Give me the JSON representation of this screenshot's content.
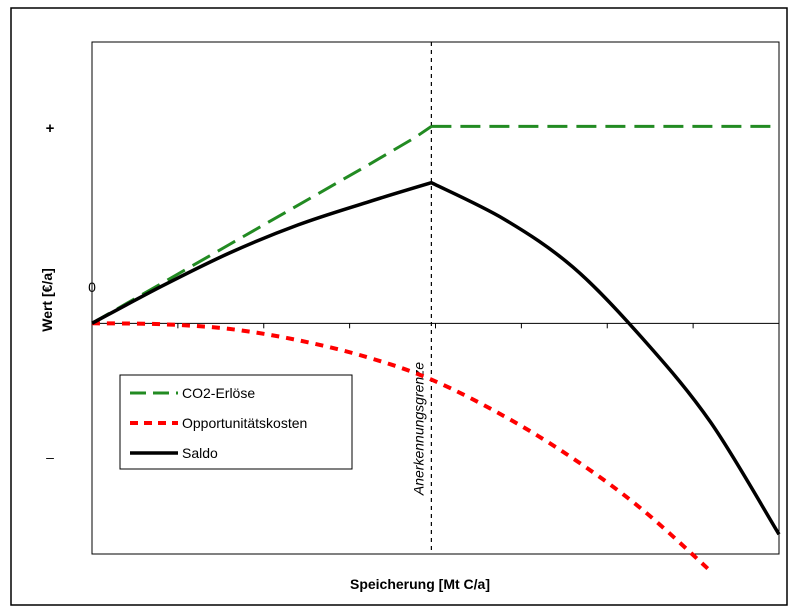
{
  "chart_data": {
    "type": "line",
    "title": "",
    "xlabel": "Speicherung [Mt C/a]",
    "ylabel": "Wert [€/a]",
    "y_plus_label": "+",
    "y_minus_label": "–",
    "x_tick_labels": [
      "0"
    ],
    "xlim": [
      0,
      1
    ],
    "ylim": [
      -0.82,
      1.0
    ],
    "grid": false,
    "legend_position": "bottom-left",
    "vline": {
      "x": 0.494,
      "label": "Anerkennungsgrenze"
    },
    "series": [
      {
        "name": "CO2-Erlöse",
        "style": "long-dash",
        "color": "#228b22",
        "x": [
          0.0,
          0.1,
          0.2,
          0.3,
          0.4,
          0.47,
          0.494,
          0.6,
          0.8,
          1.0
        ],
        "y": [
          0.0,
          0.14,
          0.28,
          0.42,
          0.56,
          0.66,
          0.7,
          0.7,
          0.7,
          0.7
        ]
      },
      {
        "name": "Opportunitätskosten",
        "style": "short-dash",
        "color": "#ff0000",
        "x": [
          0.0,
          0.1,
          0.2,
          0.3,
          0.4,
          0.494,
          0.6,
          0.7,
          0.8,
          0.9
        ],
        "y": [
          0.0,
          -0.003,
          -0.02,
          -0.06,
          -0.12,
          -0.2,
          -0.33,
          -0.48,
          -0.66,
          -0.88
        ]
      },
      {
        "name": "Saldo",
        "style": "solid",
        "color": "#000000",
        "x": [
          0.0,
          0.1,
          0.2,
          0.3,
          0.4,
          0.494,
          0.6,
          0.7,
          0.8,
          0.9,
          1.0
        ],
        "y": [
          0.0,
          0.13,
          0.25,
          0.35,
          0.43,
          0.5,
          0.37,
          0.2,
          -0.05,
          -0.35,
          -0.75
        ]
      }
    ]
  }
}
